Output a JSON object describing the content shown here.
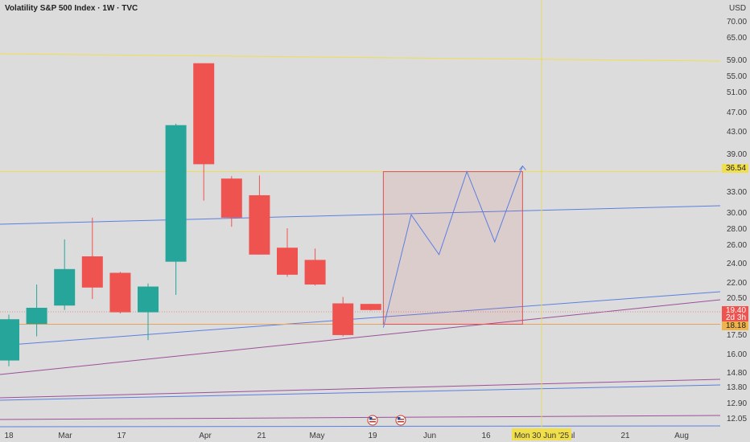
{
  "header": {
    "title": "Volatility S&P 500 Index · 1W · TVC",
    "currency": "USD"
  },
  "price_axis": {
    "labels": [
      "70.00",
      "65.00",
      "59.00",
      "55.00",
      "51.00",
      "47.00",
      "43.00",
      "39.00",
      "36.54",
      "33.00",
      "30.00",
      "28.00",
      "26.00",
      "24.00",
      "22.00",
      "20.50",
      "19.40",
      "2d 3h",
      "18.18",
      "17.50",
      "16.00",
      "14.80",
      "13.80",
      "12.90",
      "12.05"
    ],
    "badges": {
      "level_value": "36.54",
      "last_price": "19.40",
      "countdown": "2d 3h",
      "bid_level": "18.18"
    }
  },
  "time_axis": {
    "labels": [
      "18",
      "Mar",
      "17",
      "Apr",
      "21",
      "May",
      "19",
      "Jun",
      "16",
      "Jul",
      "21",
      "Aug"
    ],
    "crosshair_label": "Mon 30 Jun '25"
  },
  "colors": {
    "background": "#dcdcdc",
    "up": "#26a69a",
    "down": "#ef5350",
    "trend_blue": "#5b7fe0",
    "trend_purple": "#9c4f9a",
    "level_yellow": "#f0de4a",
    "range_red": "#e15050",
    "crosshair": "#e5d86a"
  },
  "chart_data": {
    "type": "candlestick",
    "title": "Volatility S&P 500 Index · 1W · TVC",
    "x_axis_ticks": [
      "18",
      "Mar",
      "17",
      "Apr",
      "21",
      "May",
      "19",
      "Jun",
      "16",
      "Jul",
      "21",
      "Aug"
    ],
    "y_unit": "USD",
    "y_scale": "log",
    "ylim": [
      11.8,
      75
    ],
    "candles": [
      {
        "week": 0,
        "open": 15.4,
        "high": 19.0,
        "low": 15.0,
        "close": 18.6
      },
      {
        "week": 1,
        "open": 18.2,
        "high": 21.8,
        "low": 17.2,
        "close": 19.6
      },
      {
        "week": 2,
        "open": 19.8,
        "high": 26.8,
        "low": 19.4,
        "close": 23.4
      },
      {
        "week": 3,
        "open": 24.8,
        "high": 29.6,
        "low": 20.4,
        "close": 21.5
      },
      {
        "week": 4,
        "open": 23.0,
        "high": 23.1,
        "low": 19.1,
        "close": 19.2
      },
      {
        "week": 5,
        "open": 19.2,
        "high": 21.9,
        "low": 16.9,
        "close": 21.6
      },
      {
        "week": 6,
        "open": 24.2,
        "high": 45.5,
        "low": 20.8,
        "close": 45.2
      },
      {
        "week": 7,
        "open": 60.0,
        "high": 60.0,
        "low": 32.0,
        "close": 37.8
      },
      {
        "week": 8,
        "open": 35.4,
        "high": 35.8,
        "low": 28.4,
        "close": 29.6
      },
      {
        "week": 9,
        "open": 32.8,
        "high": 35.9,
        "low": 25.0,
        "close": 25.0
      },
      {
        "week": 10,
        "open": 25.8,
        "high": 28.2,
        "low": 22.6,
        "close": 22.8
      },
      {
        "week": 11,
        "open": 24.4,
        "high": 25.7,
        "low": 21.7,
        "close": 21.8
      },
      {
        "week": 12,
        "open": 20.0,
        "high": 20.6,
        "low": 17.2,
        "close": 17.3
      },
      {
        "week": 13,
        "open": 19.95,
        "high": 19.95,
        "low": 19.35,
        "close": 19.4
      }
    ],
    "horizontal_levels": [
      36.54,
      18.18
    ],
    "projection_path": [
      {
        "week": 13.45,
        "value": 17.9
      },
      {
        "week": 14.45,
        "value": 30.0
      },
      {
        "week": 15.45,
        "value": 25.0
      },
      {
        "week": 16.45,
        "value": 36.54
      },
      {
        "week": 17.45,
        "value": 26.5
      },
      {
        "week": 18.45,
        "value": 37.5
      }
    ],
    "range_box": {
      "from_week": 13.45,
      "to_week": 18.45,
      "top": 36.54,
      "bottom": 18.18
    }
  }
}
